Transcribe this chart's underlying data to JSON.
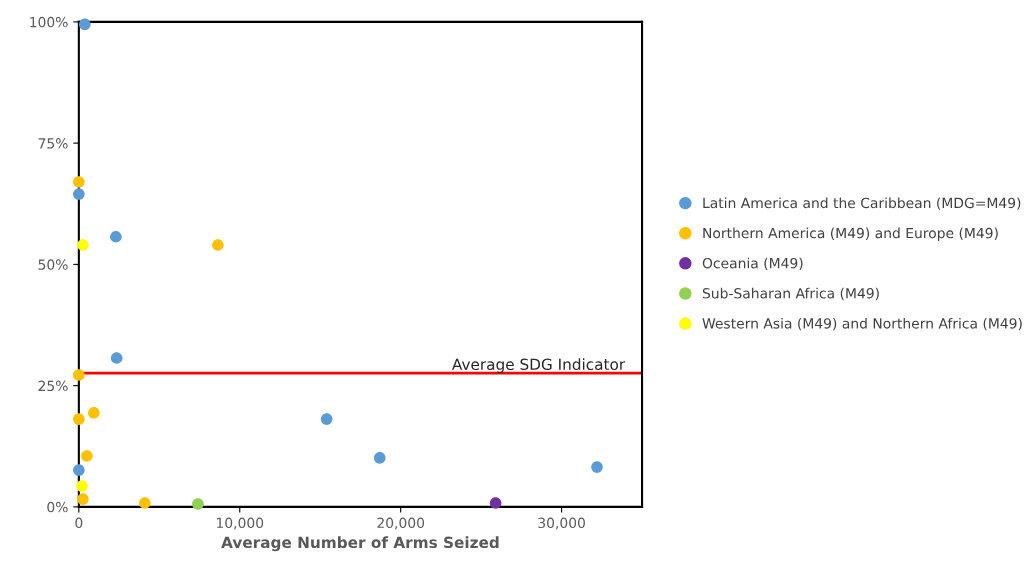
{
  "chart_data": {
    "type": "scatter",
    "xlabel": "Average Number of Arms Seized",
    "xlim": [
      0,
      35000
    ],
    "xticks": [
      0,
      {
        "value": 10000,
        "label": "10,000"
      },
      {
        "value": 20000,
        "label": "20,000"
      },
      {
        "value": 30000,
        "label": "30,000"
      }
    ],
    "ylim": [
      0,
      100
    ],
    "yticks": [
      {
        "value": 0,
        "label": "0%"
      },
      {
        "value": 25,
        "label": "25%"
      },
      {
        "value": 50,
        "label": "50%"
      },
      {
        "value": 75,
        "label": "75%"
      },
      {
        "value": 100,
        "label": "100%"
      }
    ],
    "grid": false,
    "legend": "right",
    "marker": "circle",
    "series": [
      {
        "name": "Latin America and the Caribbean (MDG=M49)",
        "color": "#5b9bd5",
        "x": [
          370,
          0,
          2300,
          2350,
          0,
          15400,
          18700,
          32200
        ],
        "values": [
          99.5,
          64.5,
          55.7,
          30.7,
          7.6,
          18.1,
          10.1,
          8.2
        ]
      },
      {
        "name": "Northern America (M49) and Europe (M49)",
        "color": "#ffc000",
        "x": [
          0,
          8640,
          0,
          0,
          930,
          500,
          250,
          4100
        ],
        "values": [
          67.0,
          54.0,
          27.2,
          18.1,
          19.4,
          10.5,
          1.6,
          0.8
        ]
      },
      {
        "name": "Oceania (M49)",
        "color": "#7030a0",
        "x": [
          25900
        ],
        "values": [
          0.8
        ]
      },
      {
        "name": "Sub-Saharan Africa (M49)",
        "color": "#92d050",
        "x": [
          7400
        ],
        "values": [
          0.6
        ]
      },
      {
        "name": "Western Asia (M49) and Northern Africa (M49)",
        "color": "#ffff00",
        "x": [
          250,
          190
        ],
        "values": [
          54.0,
          4.3
        ]
      }
    ],
    "ref_lines": [
      {
        "axis": "y",
        "value": 27.6,
        "label": "Average SDG Indicator",
        "color": "#ff0000"
      }
    ]
  }
}
